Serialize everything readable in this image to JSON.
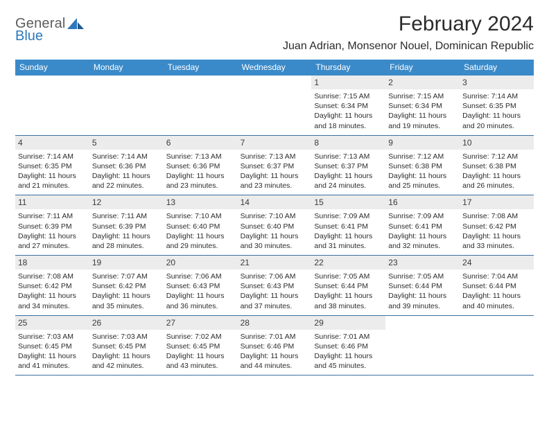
{
  "logo": {
    "word1": "General",
    "word2": "Blue"
  },
  "title": "February 2024",
  "location": "Juan Adrian, Monsenor Nouel, Dominican Republic",
  "colors": {
    "header_bg": "#3a8ac9",
    "header_text": "#ffffff",
    "daynum_bg": "#ececec",
    "text": "#2b2b2b",
    "rule": "#3a6fa0",
    "logo_gray": "#5c5c5c",
    "logo_blue": "#2d78bc"
  },
  "weekdays": [
    "Sunday",
    "Monday",
    "Tuesday",
    "Wednesday",
    "Thursday",
    "Friday",
    "Saturday"
  ],
  "weeks": [
    [
      {
        "n": "",
        "sr": "",
        "ss": "",
        "dl1": "",
        "dl2": ""
      },
      {
        "n": "",
        "sr": "",
        "ss": "",
        "dl1": "",
        "dl2": ""
      },
      {
        "n": "",
        "sr": "",
        "ss": "",
        "dl1": "",
        "dl2": ""
      },
      {
        "n": "",
        "sr": "",
        "ss": "",
        "dl1": "",
        "dl2": ""
      },
      {
        "n": "1",
        "sr": "Sunrise: 7:15 AM",
        "ss": "Sunset: 6:34 PM",
        "dl1": "Daylight: 11 hours",
        "dl2": "and 18 minutes."
      },
      {
        "n": "2",
        "sr": "Sunrise: 7:15 AM",
        "ss": "Sunset: 6:34 PM",
        "dl1": "Daylight: 11 hours",
        "dl2": "and 19 minutes."
      },
      {
        "n": "3",
        "sr": "Sunrise: 7:14 AM",
        "ss": "Sunset: 6:35 PM",
        "dl1": "Daylight: 11 hours",
        "dl2": "and 20 minutes."
      }
    ],
    [
      {
        "n": "4",
        "sr": "Sunrise: 7:14 AM",
        "ss": "Sunset: 6:35 PM",
        "dl1": "Daylight: 11 hours",
        "dl2": "and 21 minutes."
      },
      {
        "n": "5",
        "sr": "Sunrise: 7:14 AM",
        "ss": "Sunset: 6:36 PM",
        "dl1": "Daylight: 11 hours",
        "dl2": "and 22 minutes."
      },
      {
        "n": "6",
        "sr": "Sunrise: 7:13 AM",
        "ss": "Sunset: 6:36 PM",
        "dl1": "Daylight: 11 hours",
        "dl2": "and 23 minutes."
      },
      {
        "n": "7",
        "sr": "Sunrise: 7:13 AM",
        "ss": "Sunset: 6:37 PM",
        "dl1": "Daylight: 11 hours",
        "dl2": "and 23 minutes."
      },
      {
        "n": "8",
        "sr": "Sunrise: 7:13 AM",
        "ss": "Sunset: 6:37 PM",
        "dl1": "Daylight: 11 hours",
        "dl2": "and 24 minutes."
      },
      {
        "n": "9",
        "sr": "Sunrise: 7:12 AM",
        "ss": "Sunset: 6:38 PM",
        "dl1": "Daylight: 11 hours",
        "dl2": "and 25 minutes."
      },
      {
        "n": "10",
        "sr": "Sunrise: 7:12 AM",
        "ss": "Sunset: 6:38 PM",
        "dl1": "Daylight: 11 hours",
        "dl2": "and 26 minutes."
      }
    ],
    [
      {
        "n": "11",
        "sr": "Sunrise: 7:11 AM",
        "ss": "Sunset: 6:39 PM",
        "dl1": "Daylight: 11 hours",
        "dl2": "and 27 minutes."
      },
      {
        "n": "12",
        "sr": "Sunrise: 7:11 AM",
        "ss": "Sunset: 6:39 PM",
        "dl1": "Daylight: 11 hours",
        "dl2": "and 28 minutes."
      },
      {
        "n": "13",
        "sr": "Sunrise: 7:10 AM",
        "ss": "Sunset: 6:40 PM",
        "dl1": "Daylight: 11 hours",
        "dl2": "and 29 minutes."
      },
      {
        "n": "14",
        "sr": "Sunrise: 7:10 AM",
        "ss": "Sunset: 6:40 PM",
        "dl1": "Daylight: 11 hours",
        "dl2": "and 30 minutes."
      },
      {
        "n": "15",
        "sr": "Sunrise: 7:09 AM",
        "ss": "Sunset: 6:41 PM",
        "dl1": "Daylight: 11 hours",
        "dl2": "and 31 minutes."
      },
      {
        "n": "16",
        "sr": "Sunrise: 7:09 AM",
        "ss": "Sunset: 6:41 PM",
        "dl1": "Daylight: 11 hours",
        "dl2": "and 32 minutes."
      },
      {
        "n": "17",
        "sr": "Sunrise: 7:08 AM",
        "ss": "Sunset: 6:42 PM",
        "dl1": "Daylight: 11 hours",
        "dl2": "and 33 minutes."
      }
    ],
    [
      {
        "n": "18",
        "sr": "Sunrise: 7:08 AM",
        "ss": "Sunset: 6:42 PM",
        "dl1": "Daylight: 11 hours",
        "dl2": "and 34 minutes."
      },
      {
        "n": "19",
        "sr": "Sunrise: 7:07 AM",
        "ss": "Sunset: 6:42 PM",
        "dl1": "Daylight: 11 hours",
        "dl2": "and 35 minutes."
      },
      {
        "n": "20",
        "sr": "Sunrise: 7:06 AM",
        "ss": "Sunset: 6:43 PM",
        "dl1": "Daylight: 11 hours",
        "dl2": "and 36 minutes."
      },
      {
        "n": "21",
        "sr": "Sunrise: 7:06 AM",
        "ss": "Sunset: 6:43 PM",
        "dl1": "Daylight: 11 hours",
        "dl2": "and 37 minutes."
      },
      {
        "n": "22",
        "sr": "Sunrise: 7:05 AM",
        "ss": "Sunset: 6:44 PM",
        "dl1": "Daylight: 11 hours",
        "dl2": "and 38 minutes."
      },
      {
        "n": "23",
        "sr": "Sunrise: 7:05 AM",
        "ss": "Sunset: 6:44 PM",
        "dl1": "Daylight: 11 hours",
        "dl2": "and 39 minutes."
      },
      {
        "n": "24",
        "sr": "Sunrise: 7:04 AM",
        "ss": "Sunset: 6:44 PM",
        "dl1": "Daylight: 11 hours",
        "dl2": "and 40 minutes."
      }
    ],
    [
      {
        "n": "25",
        "sr": "Sunrise: 7:03 AM",
        "ss": "Sunset: 6:45 PM",
        "dl1": "Daylight: 11 hours",
        "dl2": "and 41 minutes."
      },
      {
        "n": "26",
        "sr": "Sunrise: 7:03 AM",
        "ss": "Sunset: 6:45 PM",
        "dl1": "Daylight: 11 hours",
        "dl2": "and 42 minutes."
      },
      {
        "n": "27",
        "sr": "Sunrise: 7:02 AM",
        "ss": "Sunset: 6:45 PM",
        "dl1": "Daylight: 11 hours",
        "dl2": "and 43 minutes."
      },
      {
        "n": "28",
        "sr": "Sunrise: 7:01 AM",
        "ss": "Sunset: 6:46 PM",
        "dl1": "Daylight: 11 hours",
        "dl2": "and 44 minutes."
      },
      {
        "n": "29",
        "sr": "Sunrise: 7:01 AM",
        "ss": "Sunset: 6:46 PM",
        "dl1": "Daylight: 11 hours",
        "dl2": "and 45 minutes."
      },
      {
        "n": "",
        "sr": "",
        "ss": "",
        "dl1": "",
        "dl2": ""
      },
      {
        "n": "",
        "sr": "",
        "ss": "",
        "dl1": "",
        "dl2": ""
      }
    ]
  ]
}
